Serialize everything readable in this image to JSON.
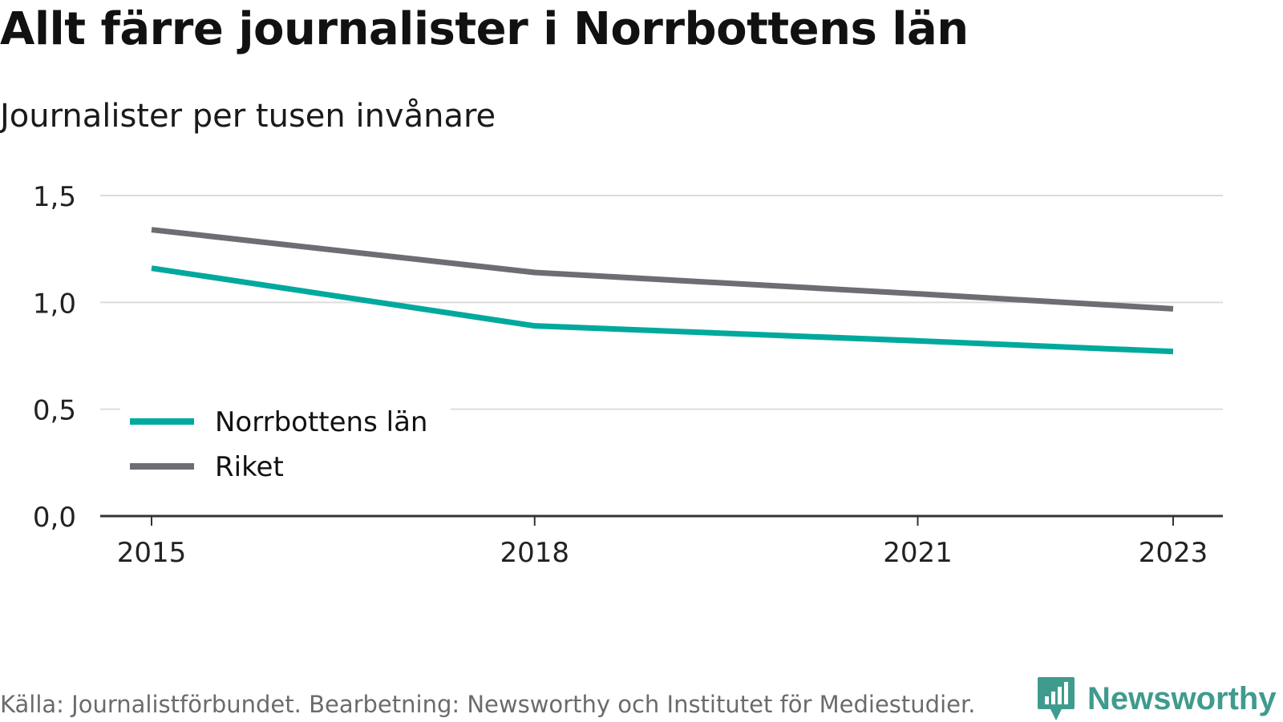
{
  "title": "Allt färre journalister i Norrbottens län",
  "subtitle": "Journalister per tusen invånare",
  "source": "Källa: Journalistförbundet. Bearbetning: Newsworthy och Institutet för Mediestudier.",
  "brand": {
    "name": "Newsworthy",
    "icon": "newsworthy-logo-icon",
    "color": "#3f9b8d"
  },
  "chart_data": {
    "type": "line",
    "x": [
      2015,
      2018,
      2021,
      2023
    ],
    "x_tick_labels": [
      "2015",
      "2018",
      "2021",
      "2023"
    ],
    "ylim": [
      0,
      1.5
    ],
    "y_ticks": [
      0,
      0.5,
      1.0,
      1.5
    ],
    "y_tick_labels": [
      "0,0",
      "0,5",
      "1,0",
      "1,5"
    ],
    "grid": true,
    "legend_position": "bottom-left",
    "series": [
      {
        "name": "Norrbottens län",
        "color": "#00a99d",
        "values": [
          1.16,
          0.89,
          0.82,
          0.77
        ]
      },
      {
        "name": "Riket",
        "color": "#6d6d74",
        "values": [
          1.34,
          1.14,
          1.04,
          0.97
        ]
      }
    ]
  }
}
